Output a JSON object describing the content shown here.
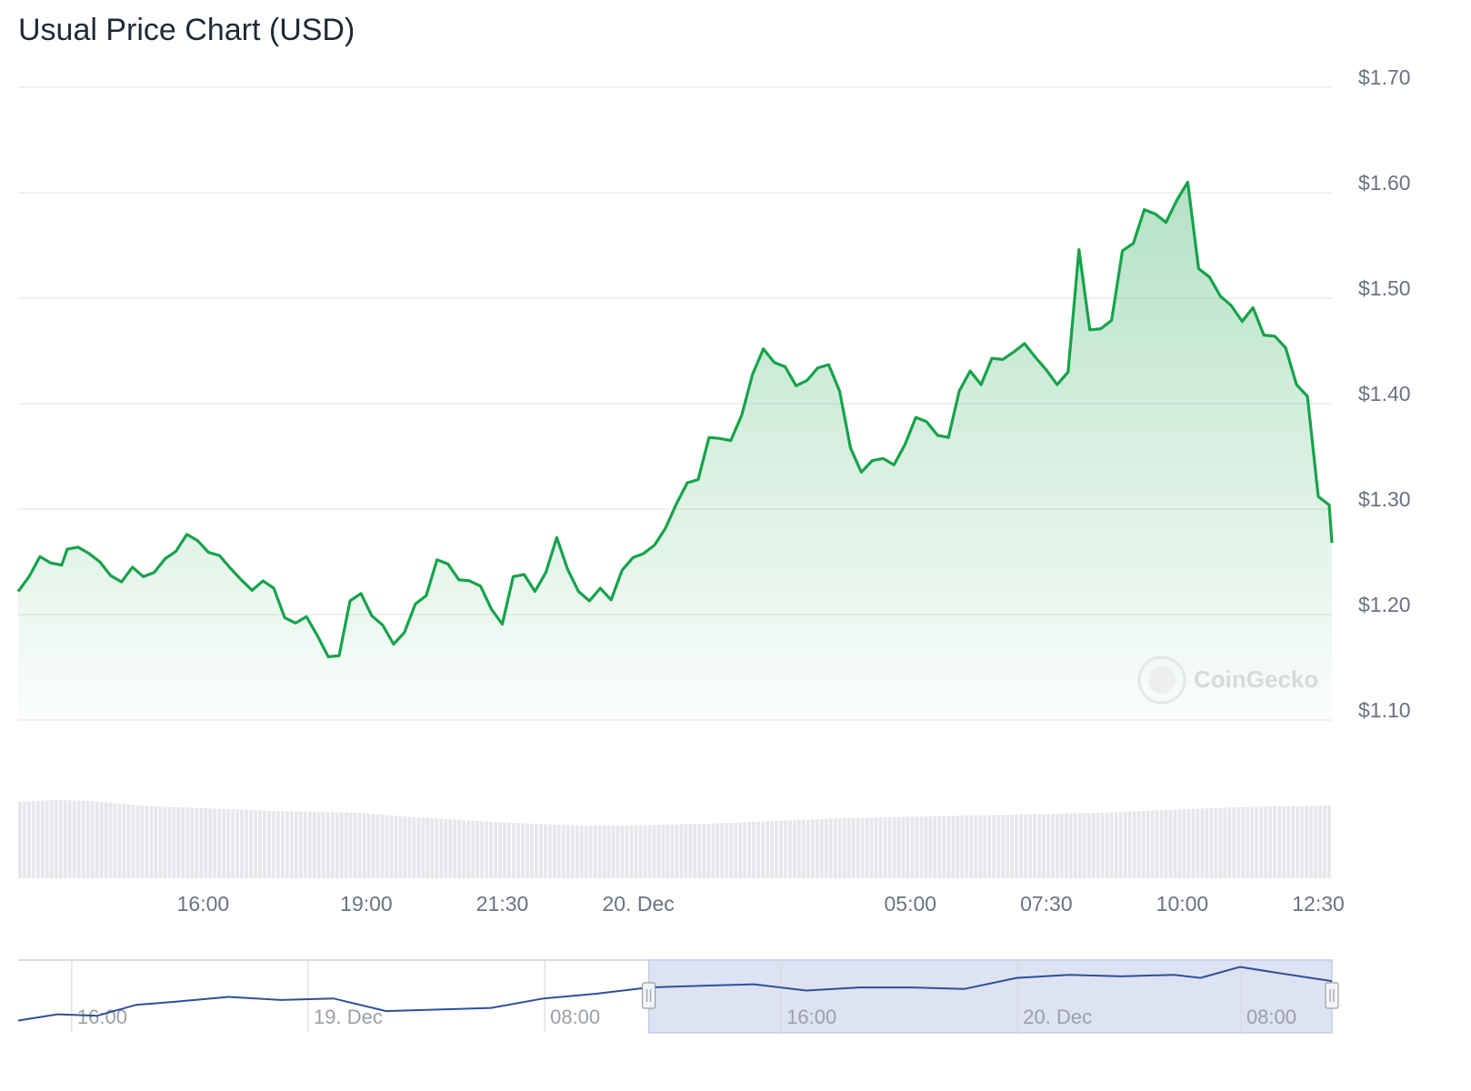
{
  "title": "Usual Price Chart (USD)",
  "watermark": "CoinGecko",
  "chart_data": {
    "type": "area",
    "title": "Usual Price Chart (USD)",
    "ylim": [
      1.1,
      1.7
    ],
    "yticks": [
      {
        "value": 1.7,
        "label": "$1.70"
      },
      {
        "value": 1.6,
        "label": "$1.60"
      },
      {
        "value": 1.5,
        "label": "$1.50"
      },
      {
        "value": 1.4,
        "label": "$1.40"
      },
      {
        "value": 1.3,
        "label": "$1.30"
      },
      {
        "value": 1.2,
        "label": "$1.20"
      },
      {
        "value": 1.1,
        "label": "$1.10"
      }
    ],
    "xlim": [
      12.6,
      36.75
    ],
    "xticks": [
      {
        "value": 16.0,
        "label": "16:00"
      },
      {
        "value": 19.0,
        "label": "19:00"
      },
      {
        "value": 21.5,
        "label": "21:30"
      },
      {
        "value": 24.0,
        "label": "20. Dec"
      },
      {
        "value": 29.0,
        "label": "05:00"
      },
      {
        "value": 31.5,
        "label": "07:30"
      },
      {
        "value": 34.0,
        "label": "10:00"
      },
      {
        "value": 36.5,
        "label": "12:30"
      }
    ],
    "x_unit": "hours since 19 Dec 00:00",
    "grid": true,
    "price_series": [
      [
        12.6,
        1.222
      ],
      [
        12.8,
        1.236
      ],
      [
        13.0,
        1.255
      ],
      [
        13.2,
        1.249
      ],
      [
        13.4,
        1.247
      ],
      [
        13.5,
        1.262
      ],
      [
        13.7,
        1.264
      ],
      [
        13.9,
        1.258
      ],
      [
        14.1,
        1.25
      ],
      [
        14.3,
        1.237
      ],
      [
        14.5,
        1.231
      ],
      [
        14.7,
        1.245
      ],
      [
        14.9,
        1.236
      ],
      [
        15.1,
        1.24
      ],
      [
        15.3,
        1.253
      ],
      [
        15.5,
        1.26
      ],
      [
        15.7,
        1.276
      ],
      [
        15.9,
        1.27
      ],
      [
        16.1,
        1.259
      ],
      [
        16.3,
        1.256
      ],
      [
        16.5,
        1.244
      ],
      [
        16.7,
        1.233
      ],
      [
        16.9,
        1.223
      ],
      [
        17.1,
        1.232
      ],
      [
        17.3,
        1.225
      ],
      [
        17.5,
        1.197
      ],
      [
        17.7,
        1.192
      ],
      [
        17.9,
        1.198
      ],
      [
        18.1,
        1.18
      ],
      [
        18.3,
        1.16
      ],
      [
        18.5,
        1.161
      ],
      [
        18.7,
        1.213
      ],
      [
        18.9,
        1.22
      ],
      [
        19.1,
        1.199
      ],
      [
        19.3,
        1.19
      ],
      [
        19.5,
        1.172
      ],
      [
        19.7,
        1.183
      ],
      [
        19.9,
        1.21
      ],
      [
        20.1,
        1.218
      ],
      [
        20.3,
        1.252
      ],
      [
        20.5,
        1.248
      ],
      [
        20.7,
        1.233
      ],
      [
        20.9,
        1.232
      ],
      [
        21.1,
        1.227
      ],
      [
        21.3,
        1.205
      ],
      [
        21.5,
        1.191
      ],
      [
        21.7,
        1.236
      ],
      [
        21.9,
        1.238
      ],
      [
        22.1,
        1.222
      ],
      [
        22.3,
        1.24
      ],
      [
        22.5,
        1.273
      ],
      [
        22.7,
        1.243
      ],
      [
        22.9,
        1.222
      ],
      [
        23.1,
        1.213
      ],
      [
        23.3,
        1.225
      ],
      [
        23.5,
        1.214
      ],
      [
        23.7,
        1.242
      ],
      [
        23.9,
        1.254
      ],
      [
        24.1,
        1.258
      ],
      [
        24.3,
        1.266
      ],
      [
        24.5,
        1.282
      ],
      [
        24.7,
        1.305
      ],
      [
        24.9,
        1.325
      ],
      [
        25.1,
        1.328
      ],
      [
        25.3,
        1.368
      ],
      [
        25.5,
        1.367
      ],
      [
        25.7,
        1.365
      ],
      [
        25.9,
        1.389
      ],
      [
        26.1,
        1.428
      ],
      [
        26.3,
        1.452
      ],
      [
        26.5,
        1.439
      ],
      [
        26.7,
        1.435
      ],
      [
        26.9,
        1.417
      ],
      [
        27.1,
        1.422
      ],
      [
        27.3,
        1.434
      ],
      [
        27.5,
        1.437
      ],
      [
        27.7,
        1.412
      ],
      [
        27.9,
        1.358
      ],
      [
        28.1,
        1.335
      ],
      [
        28.3,
        1.346
      ],
      [
        28.5,
        1.348
      ],
      [
        28.7,
        1.342
      ],
      [
        28.9,
        1.361
      ],
      [
        29.1,
        1.387
      ],
      [
        29.3,
        1.383
      ],
      [
        29.5,
        1.37
      ],
      [
        29.7,
        1.368
      ],
      [
        29.9,
        1.412
      ],
      [
        30.1,
        1.431
      ],
      [
        30.3,
        1.418
      ],
      [
        30.5,
        1.443
      ],
      [
        30.7,
        1.442
      ],
      [
        30.9,
        1.449
      ],
      [
        31.1,
        1.457
      ],
      [
        31.3,
        1.444
      ],
      [
        31.5,
        1.432
      ],
      [
        31.7,
        1.418
      ],
      [
        31.9,
        1.43
      ],
      [
        32.1,
        1.546
      ],
      [
        32.3,
        1.47
      ],
      [
        32.5,
        1.471
      ],
      [
        32.7,
        1.479
      ],
      [
        32.9,
        1.545
      ],
      [
        33.1,
        1.552
      ],
      [
        33.3,
        1.584
      ],
      [
        33.5,
        1.58
      ],
      [
        33.7,
        1.572
      ],
      [
        33.9,
        1.593
      ],
      [
        34.1,
        1.61
      ],
      [
        34.3,
        1.528
      ],
      [
        34.5,
        1.52
      ],
      [
        34.7,
        1.502
      ],
      [
        34.9,
        1.493
      ],
      [
        35.1,
        1.478
      ],
      [
        35.3,
        1.491
      ],
      [
        35.5,
        1.465
      ],
      [
        35.7,
        1.464
      ],
      [
        35.9,
        1.453
      ],
      [
        36.1,
        1.418
      ],
      [
        36.3,
        1.407
      ],
      [
        36.5,
        1.312
      ],
      [
        36.7,
        1.304
      ],
      [
        36.75,
        1.268
      ]
    ],
    "volume_series": [
      [
        12.6,
        0.84
      ],
      [
        13.3,
        0.86
      ],
      [
        14.0,
        0.85
      ],
      [
        14.8,
        0.8
      ],
      [
        15.6,
        0.78
      ],
      [
        16.5,
        0.76
      ],
      [
        17.3,
        0.74
      ],
      [
        18.1,
        0.73
      ],
      [
        18.9,
        0.72
      ],
      [
        19.7,
        0.68
      ],
      [
        20.5,
        0.65
      ],
      [
        21.3,
        0.62
      ],
      [
        22.1,
        0.6
      ],
      [
        22.9,
        0.58
      ],
      [
        23.7,
        0.58
      ],
      [
        24.5,
        0.59
      ],
      [
        25.3,
        0.6
      ],
      [
        26.1,
        0.62
      ],
      [
        26.9,
        0.64
      ],
      [
        27.7,
        0.66
      ],
      [
        28.5,
        0.67
      ],
      [
        29.3,
        0.68
      ],
      [
        30.1,
        0.69
      ],
      [
        30.9,
        0.7
      ],
      [
        31.7,
        0.71
      ],
      [
        32.5,
        0.72
      ],
      [
        33.3,
        0.74
      ],
      [
        34.1,
        0.76
      ],
      [
        34.9,
        0.78
      ],
      [
        35.7,
        0.79
      ],
      [
        36.5,
        0.8
      ],
      [
        36.75,
        0.8
      ]
    ],
    "navigator": {
      "xticks": [
        {
          "value": 0.02,
          "label": "16:00"
        },
        {
          "value": 0.2,
          "label": "19. Dec"
        },
        {
          "value": 0.38,
          "label": "08:00"
        },
        {
          "value": 0.56,
          "label": "16:00"
        },
        {
          "value": 0.74,
          "label": "20. Dec"
        },
        {
          "value": 0.91,
          "label": "08:00"
        }
      ],
      "selection": [
        0.48,
        1.0
      ],
      "series": [
        [
          0.0,
          1.1
        ],
        [
          0.03,
          1.14
        ],
        [
          0.06,
          1.13
        ],
        [
          0.09,
          1.2
        ],
        [
          0.12,
          1.22
        ],
        [
          0.16,
          1.25
        ],
        [
          0.2,
          1.23
        ],
        [
          0.24,
          1.24
        ],
        [
          0.28,
          1.16
        ],
        [
          0.32,
          1.17
        ],
        [
          0.36,
          1.18
        ],
        [
          0.4,
          1.24
        ],
        [
          0.44,
          1.27
        ],
        [
          0.48,
          1.31
        ],
        [
          0.52,
          1.32
        ],
        [
          0.56,
          1.33
        ],
        [
          0.6,
          1.29
        ],
        [
          0.64,
          1.31
        ],
        [
          0.68,
          1.31
        ],
        [
          0.72,
          1.3
        ],
        [
          0.76,
          1.37
        ],
        [
          0.8,
          1.39
        ],
        [
          0.84,
          1.38
        ],
        [
          0.88,
          1.39
        ],
        [
          0.9,
          1.37
        ],
        [
          0.93,
          1.44
        ],
        [
          0.96,
          1.4
        ],
        [
          1.0,
          1.35
        ]
      ]
    }
  }
}
